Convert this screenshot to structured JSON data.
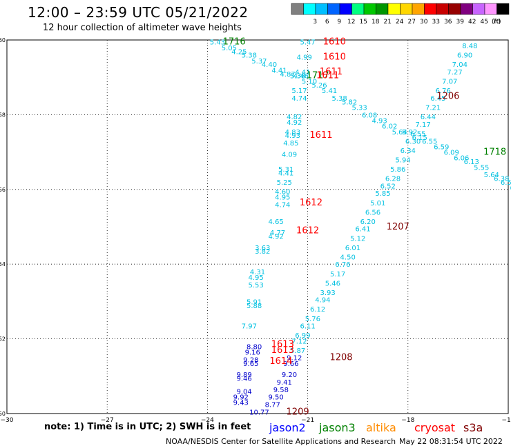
{
  "title": "12:00 – 23:59 UTC 05/21/2022",
  "subtitle": "12 hour collection of altimeter wave heights",
  "note": "note:  1) Time is in UTC;  2) SWH is in feet",
  "credit": "NOAA/NESDIS Center for Satellite Applications and Research",
  "timestamp": "May 22 08:31:54 UTC 2022",
  "satellites": [
    {
      "name": "jason2",
      "color": "#0000ff"
    },
    {
      "name": "jason3",
      "color": "#008000"
    },
    {
      "name": "altika",
      "color": "#ff8c00"
    },
    {
      "name": "cryosat",
      "color": "#ff0000"
    },
    {
      "name": "s3a",
      "color": "#800000"
    }
  ],
  "legend": {
    "unit": "(ft)",
    "bins": [
      {
        "label": "",
        "color": "#808080"
      },
      {
        "label": "3",
        "color": "#00ffff"
      },
      {
        "label": "6",
        "color": "#00bfff"
      },
      {
        "label": "9",
        "color": "#0064ff"
      },
      {
        "label": "12",
        "color": "#0000ff"
      },
      {
        "label": "15",
        "color": "#00ff80"
      },
      {
        "label": "18",
        "color": "#00c800"
      },
      {
        "label": "21",
        "color": "#009600"
      },
      {
        "label": "24",
        "color": "#ffff00"
      },
      {
        "label": "27",
        "color": "#ffd700"
      },
      {
        "label": "30",
        "color": "#ffa500"
      },
      {
        "label": "33",
        "color": "#ff0000"
      },
      {
        "label": "36",
        "color": "#c80000"
      },
      {
        "label": "39",
        "color": "#960000"
      },
      {
        "label": "42",
        "color": "#800080"
      },
      {
        "label": "45",
        "color": "#c864ff"
      },
      {
        "label": "70",
        "color": "#ff96ff"
      },
      {
        "label": "",
        "color": "#000000"
      }
    ]
  },
  "axes": {
    "x_ticks": [
      "−30",
      "−27",
      "−24",
      "−21",
      "−18",
      "−15"
    ],
    "y_ticks": [
      "50",
      "52",
      "54",
      "56",
      "58",
      "60"
    ],
    "xlim": [
      -30,
      -15
    ],
    "ylim": [
      50,
      60
    ]
  },
  "readings": [
    {
      "text": "5.43",
      "lon": -23.7,
      "lat": 59.95,
      "c": "#00c0e0"
    },
    {
      "text": "5.05",
      "lon": -23.35,
      "lat": 59.8,
      "c": "#00c0e0"
    },
    {
      "text": "4.25",
      "lon": -23.05,
      "lat": 59.7,
      "c": "#00c0e0"
    },
    {
      "text": "5.38",
      "lon": -22.75,
      "lat": 59.6,
      "c": "#00c0e0"
    },
    {
      "text": "5.37",
      "lon": -22.45,
      "lat": 59.45,
      "c": "#00c0e0"
    },
    {
      "text": "4.40",
      "lon": -22.15,
      "lat": 59.35,
      "c": "#00c0e0"
    },
    {
      "text": "4.41",
      "lon": -21.85,
      "lat": 59.2,
      "c": "#00c0e0"
    },
    {
      "text": "4.87",
      "lon": -21.6,
      "lat": 59.1,
      "c": "#00c0e0"
    },
    {
      "text": "5.38",
      "lon": -21.3,
      "lat": 59.05,
      "c": "#00c0e0"
    },
    {
      "text": "5.10",
      "lon": -20.95,
      "lat": 58.9,
      "c": "#00c0e0"
    },
    {
      "text": "5.26",
      "lon": -20.65,
      "lat": 58.8,
      "c": "#00c0e0"
    },
    {
      "text": "5.41",
      "lon": -20.35,
      "lat": 58.65,
      "c": "#00c0e0"
    },
    {
      "text": "5.38",
      "lon": -20.05,
      "lat": 58.45,
      "c": "#00c0e0"
    },
    {
      "text": "5.82",
      "lon": -19.75,
      "lat": 58.35,
      "c": "#00c0e0"
    },
    {
      "text": "5.33",
      "lon": -19.45,
      "lat": 58.2,
      "c": "#00c0e0"
    },
    {
      "text": "6.08",
      "lon": -19.15,
      "lat": 58.0,
      "c": "#00c0e0"
    },
    {
      "text": "4.93",
      "lon": -18.85,
      "lat": 57.85,
      "c": "#00c0e0"
    },
    {
      "text": "6.02",
      "lon": -18.55,
      "lat": 57.7,
      "c": "#00c0e0"
    },
    {
      "text": "5.64",
      "lon": -18.25,
      "lat": 57.55,
      "c": "#00c0e0"
    },
    {
      "text": "5.92",
      "lon": -17.95,
      "lat": 57.55,
      "c": "#00c0e0"
    },
    {
      "text": "6.15",
      "lon": -17.65,
      "lat": 57.4,
      "c": "#00c0e0"
    },
    {
      "text": "6.55",
      "lon": -17.35,
      "lat": 57.3,
      "c": "#00c0e0"
    },
    {
      "text": "6.59",
      "lon": -17.0,
      "lat": 57.15,
      "c": "#00c0e0"
    },
    {
      "text": "6.09",
      "lon": -16.7,
      "lat": 57.0,
      "c": "#00c0e0"
    },
    {
      "text": "6.06",
      "lon": -16.4,
      "lat": 56.85,
      "c": "#00c0e0"
    },
    {
      "text": "6.13",
      "lon": -16.1,
      "lat": 56.75,
      "c": "#00c0e0"
    },
    {
      "text": "5.55",
      "lon": -15.8,
      "lat": 56.6,
      "c": "#00c0e0"
    },
    {
      "text": "5.64",
      "lon": -15.5,
      "lat": 56.4,
      "c": "#00c0e0"
    },
    {
      "text": "6.38",
      "lon": -15.2,
      "lat": 56.3,
      "c": "#00c0e0"
    },
    {
      "text": "6.58",
      "lon": -15.0,
      "lat": 56.2,
      "c": "#00c0e0"
    },
    {
      "text": "6.",
      "lon": -14.85,
      "lat": 56.05,
      "c": "#00c0e0"
    },
    {
      "text": "5.47",
      "lon": -21.0,
      "lat": 59.95,
      "c": "#00c0e0"
    },
    {
      "text": "4.99",
      "lon": -21.1,
      "lat": 59.55,
      "c": "#00c0e0"
    },
    {
      "text": "4.41",
      "lon": -21.15,
      "lat": 59.15,
      "c": "#00c0e0"
    },
    {
      "text": "4.46",
      "lon": -21.2,
      "lat": 59.05,
      "c": "#00c0e0"
    },
    {
      "text": "5.17",
      "lon": -21.25,
      "lat": 58.65,
      "c": "#00c0e0"
    },
    {
      "text": "4.74",
      "lon": -21.25,
      "lat": 58.45,
      "c": "#00c0e0"
    },
    {
      "text": "4.82",
      "lon": -21.4,
      "lat": 57.95,
      "c": "#00c0e0"
    },
    {
      "text": "4.92",
      "lon": -21.4,
      "lat": 57.8,
      "c": "#00c0e0"
    },
    {
      "text": "4.83",
      "lon": -21.45,
      "lat": 57.55,
      "c": "#00c0e0"
    },
    {
      "text": "4.93",
      "lon": -21.45,
      "lat": 57.45,
      "c": "#00c0e0"
    },
    {
      "text": "4.85",
      "lon": -21.5,
      "lat": 57.25,
      "c": "#00c0e0"
    },
    {
      "text": "4.09",
      "lon": -21.55,
      "lat": 56.95,
      "c": "#00c0e0"
    },
    {
      "text": "5.31",
      "lon": -21.65,
      "lat": 56.55,
      "c": "#00c0e0"
    },
    {
      "text": "4.41",
      "lon": -21.65,
      "lat": 56.45,
      "c": "#00c0e0"
    },
    {
      "text": "5.25",
      "lon": -21.7,
      "lat": 56.2,
      "c": "#00c0e0"
    },
    {
      "text": "4.60",
      "lon": -21.75,
      "lat": 55.95,
      "c": "#00c0e0"
    },
    {
      "text": "4.95",
      "lon": -21.75,
      "lat": 55.8,
      "c": "#00c0e0"
    },
    {
      "text": "4.74",
      "lon": -21.75,
      "lat": 55.6,
      "c": "#00c0e0"
    },
    {
      "text": "4.65",
      "lon": -21.95,
      "lat": 55.15,
      "c": "#00c0e0"
    },
    {
      "text": "4.77",
      "lon": -21.9,
      "lat": 54.85,
      "c": "#00c0e0"
    },
    {
      "text": "4.92",
      "lon": -21.95,
      "lat": 54.75,
      "c": "#00c0e0"
    },
    {
      "text": "3.63",
      "lon": -22.35,
      "lat": 54.45,
      "c": "#00c0e0"
    },
    {
      "text": "3.82",
      "lon": -22.35,
      "lat": 54.35,
      "c": "#00c0e0"
    },
    {
      "text": "4.31",
      "lon": -22.5,
      "lat": 53.8,
      "c": "#00c0e0"
    },
    {
      "text": "4.95",
      "lon": -22.55,
      "lat": 53.65,
      "c": "#00c0e0"
    },
    {
      "text": "5.53",
      "lon": -22.55,
      "lat": 53.45,
      "c": "#00c0e0"
    },
    {
      "text": "5.91",
      "lon": -22.6,
      "lat": 53.0,
      "c": "#00c0e0"
    },
    {
      "text": "5.88",
      "lon": -22.6,
      "lat": 52.9,
      "c": "#00c0e0"
    },
    {
      "text": "7.97",
      "lon": -22.75,
      "lat": 52.35,
      "c": "#00c0e0"
    },
    {
      "text": "8.48",
      "lon": -16.15,
      "lat": 59.85,
      "c": "#00c0e0"
    },
    {
      "text": "6.90",
      "lon": -16.3,
      "lat": 59.6,
      "c": "#00c0e0"
    },
    {
      "text": "7.04",
      "lon": -16.45,
      "lat": 59.35,
      "c": "#00c0e0"
    },
    {
      "text": "7.27",
      "lon": -16.6,
      "lat": 59.15,
      "c": "#00c0e0"
    },
    {
      "text": "7.07",
      "lon": -16.75,
      "lat": 58.9,
      "c": "#00c0e0"
    },
    {
      "text": "6.76",
      "lon": -16.95,
      "lat": 58.65,
      "c": "#00c0e0"
    },
    {
      "text": "6.45",
      "lon": -17.1,
      "lat": 58.45,
      "c": "#00c0e0"
    },
    {
      "text": "7.21",
      "lon": -17.25,
      "lat": 58.2,
      "c": "#00c0e0"
    },
    {
      "text": "6.44",
      "lon": -17.4,
      "lat": 57.95,
      "c": "#00c0e0"
    },
    {
      "text": "7.17",
      "lon": -17.55,
      "lat": 57.75,
      "c": "#00c0e0"
    },
    {
      "text": "6.55",
      "lon": -17.7,
      "lat": 57.5,
      "c": "#00c0e0"
    },
    {
      "text": "6.30",
      "lon": -17.85,
      "lat": 57.3,
      "c": "#00c0e0"
    },
    {
      "text": "6.34",
      "lon": -18.0,
      "lat": 57.05,
      "c": "#00c0e0"
    },
    {
      "text": "5.94",
      "lon": -18.15,
      "lat": 56.8,
      "c": "#00c0e0"
    },
    {
      "text": "5.86",
      "lon": -18.3,
      "lat": 56.55,
      "c": "#00c0e0"
    },
    {
      "text": "6.28",
      "lon": -18.45,
      "lat": 56.3,
      "c": "#00c0e0"
    },
    {
      "text": "6.52",
      "lon": -18.6,
      "lat": 56.1,
      "c": "#00c0e0"
    },
    {
      "text": "5.85",
      "lon": -18.75,
      "lat": 55.9,
      "c": "#00c0e0"
    },
    {
      "text": "5.01",
      "lon": -18.9,
      "lat": 55.65,
      "c": "#00c0e0"
    },
    {
      "text": "6.56",
      "lon": -19.05,
      "lat": 55.4,
      "c": "#00c0e0"
    },
    {
      "text": "6.20",
      "lon": -19.2,
      "lat": 55.15,
      "c": "#00c0e0"
    },
    {
      "text": "6.41",
      "lon": -19.35,
      "lat": 54.95,
      "c": "#00c0e0"
    },
    {
      "text": "5.12",
      "lon": -19.5,
      "lat": 54.7,
      "c": "#00c0e0"
    },
    {
      "text": "6.01",
      "lon": -19.65,
      "lat": 54.45,
      "c": "#00c0e0"
    },
    {
      "text": "4.50",
      "lon": -19.8,
      "lat": 54.2,
      "c": "#00c0e0"
    },
    {
      "text": "6.76",
      "lon": -19.95,
      "lat": 54.0,
      "c": "#00c0e0"
    },
    {
      "text": "5.17",
      "lon": -20.1,
      "lat": 53.75,
      "c": "#00c0e0"
    },
    {
      "text": "5.46",
      "lon": -20.25,
      "lat": 53.5,
      "c": "#00c0e0"
    },
    {
      "text": "3.93",
      "lon": -20.4,
      "lat": 53.25,
      "c": "#00c0e0"
    },
    {
      "text": "4.94",
      "lon": -20.55,
      "lat": 53.05,
      "c": "#00c0e0"
    },
    {
      "text": "6.12",
      "lon": -20.7,
      "lat": 52.8,
      "c": "#00c0e0"
    },
    {
      "text": "5.76",
      "lon": -20.85,
      "lat": 52.55,
      "c": "#00c0e0"
    },
    {
      "text": "6.11",
      "lon": -21.0,
      "lat": 52.35,
      "c": "#00c0e0"
    },
    {
      "text": "6.99",
      "lon": -21.15,
      "lat": 52.1,
      "c": "#00c0e0"
    },
    {
      "text": "7.12",
      "lon": -21.25,
      "lat": 51.95,
      "c": "#00c0e0"
    },
    {
      "text": "5.87",
      "lon": -21.3,
      "lat": 51.7,
      "c": "#00c0e0"
    },
    {
      "text": "8.80",
      "lon": -22.6,
      "lat": 51.8,
      "c": "#0000cc"
    },
    {
      "text": "9.16",
      "lon": -22.65,
      "lat": 51.65,
      "c": "#0000cc"
    },
    {
      "text": "9.28",
      "lon": -22.7,
      "lat": 51.45,
      "c": "#0000cc"
    },
    {
      "text": "9.65",
      "lon": -22.7,
      "lat": 51.35,
      "c": "#0000cc"
    },
    {
      "text": "9.12",
      "lon": -21.4,
      "lat": 51.5,
      "c": "#0000cc"
    },
    {
      "text": "9.66",
      "lon": -21.5,
      "lat": 51.35,
      "c": "#0000cc"
    },
    {
      "text": "9.20",
      "lon": -21.55,
      "lat": 51.05,
      "c": "#0000cc"
    },
    {
      "text": "9.89",
      "lon": -22.9,
      "lat": 51.05,
      "c": "#0000cc"
    },
    {
      "text": "9.46",
      "lon": -22.9,
      "lat": 50.95,
      "c": "#0000cc"
    },
    {
      "text": "9.41",
      "lon": -21.7,
      "lat": 50.85,
      "c": "#0000cc"
    },
    {
      "text": "9.58",
      "lon": -21.8,
      "lat": 50.65,
      "c": "#0000cc"
    },
    {
      "text": "9.04",
      "lon": -22.9,
      "lat": 50.6,
      "c": "#0000cc"
    },
    {
      "text": "9.50",
      "lon": -21.95,
      "lat": 50.45,
      "c": "#0000cc"
    },
    {
      "text": "9.92",
      "lon": -23.0,
      "lat": 50.45,
      "c": "#0000cc"
    },
    {
      "text": "9.43",
      "lon": -23.0,
      "lat": 50.3,
      "c": "#0000cc"
    },
    {
      "text": "8.77",
      "lon": -22.05,
      "lat": 50.25,
      "c": "#0000cc"
    },
    {
      "text": "10.77",
      "lon": -22.45,
      "lat": 50.05,
      "c": "#0000cc"
    },
    {
      "text": "1716",
      "lon": -23.2,
      "lat": 59.95,
      "c": "#008000",
      "big": true
    },
    {
      "text": "1717",
      "lon": -20.7,
      "lat": 59.05,
      "c": "#008000",
      "big": true
    },
    {
      "text": "1718",
      "lon": -15.4,
      "lat": 57.0,
      "c": "#008000",
      "big": true
    },
    {
      "text": "1610",
      "lon": -20.2,
      "lat": 59.95,
      "c": "#ff0000",
      "big": true
    },
    {
      "text": "1610",
      "lon": -20.2,
      "lat": 59.55,
      "c": "#ff0000",
      "big": true
    },
    {
      "text": "1611",
      "lon": -20.3,
      "lat": 59.15,
      "c": "#ff0000",
      "big": true
    },
    {
      "text": "1611",
      "lon": -20.4,
      "lat": 59.05,
      "c": "#ff0000",
      "big": true
    },
    {
      "text": "1611",
      "lon": -20.6,
      "lat": 57.45,
      "c": "#ff0000",
      "big": true
    },
    {
      "text": "1612",
      "lon": -20.9,
      "lat": 55.65,
      "c": "#ff0000",
      "big": true
    },
    {
      "text": "1612",
      "lon": -21.0,
      "lat": 54.9,
      "c": "#ff0000",
      "big": true
    },
    {
      "text": "1613",
      "lon": -21.75,
      "lat": 51.85,
      "c": "#ff0000",
      "big": true
    },
    {
      "text": "1613",
      "lon": -21.75,
      "lat": 51.7,
      "c": "#ff0000",
      "big": true
    },
    {
      "text": "1614",
      "lon": -21.8,
      "lat": 51.4,
      "c": "#ff0000",
      "big": true
    },
    {
      "text": "1206",
      "lon": -16.8,
      "lat": 58.5,
      "c": "#800000",
      "big": true
    },
    {
      "text": "1207",
      "lon": -18.3,
      "lat": 55.0,
      "c": "#800000",
      "big": true
    },
    {
      "text": "1208",
      "lon": -20.0,
      "lat": 51.5,
      "c": "#800000",
      "big": true
    },
    {
      "text": "1209",
      "lon": -21.3,
      "lat": 50.05,
      "c": "#800000",
      "big": true
    }
  ]
}
